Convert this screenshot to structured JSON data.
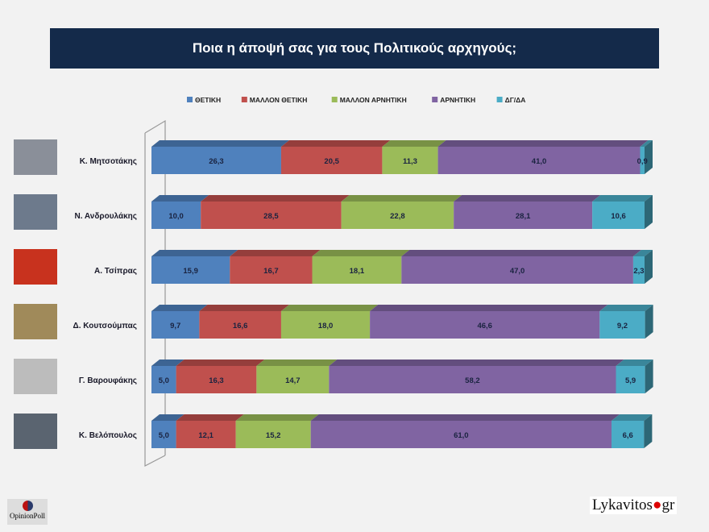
{
  "title": "Ποια η άποψή σας για τους Πολιτικούς αρχηγούς;",
  "chart_data": {
    "type": "bar",
    "orientation": "horizontal",
    "stacked": "100%",
    "style": "3d",
    "title": "Ποια η άποψή σας για τους Πολιτικούς αρχηγούς;",
    "legend_position": "top",
    "categories": [
      "Κ. Μητσοτάκης",
      "Ν. Ανδρουλάκης",
      "Α. Τσίπρας",
      "Δ. Κουτσούμπας",
      "Γ. Βαρουφάκης",
      "Κ. Βελόπουλος"
    ],
    "series": [
      {
        "name": "ΘΕΤΙΚΗ",
        "color": "#4f81bd",
        "values": [
          26.3,
          10.0,
          15.9,
          9.7,
          5.0,
          5.0
        ]
      },
      {
        "name": "ΜΑΛΛΟΝ ΘΕΤΙΚΗ",
        "color": "#c0504d",
        "values": [
          20.5,
          28.5,
          16.7,
          16.6,
          16.3,
          12.1
        ]
      },
      {
        "name": "ΜΑΛΛΟΝ ΑΡΝΗΤΙΚΗ",
        "color": "#9bbb59",
        "values": [
          11.3,
          22.8,
          18.1,
          18.0,
          14.7,
          15.2
        ]
      },
      {
        "name": "ΑΡΝΗΤΙΚΗ",
        "color": "#8064a2",
        "values": [
          41.0,
          28.1,
          47.0,
          46.6,
          58.2,
          61.0
        ]
      },
      {
        "name": "ΔΓ/ΔΑ",
        "color": "#4bacc6",
        "values": [
          0.9,
          10.6,
          2.3,
          9.2,
          5.9,
          6.6
        ]
      }
    ],
    "xlim": [
      0,
      100
    ],
    "grid": false
  },
  "logos": {
    "left": "OpinionPoll",
    "right_a": "Lykavitos",
    "right_dot": "●",
    "right_b": "gr"
  }
}
